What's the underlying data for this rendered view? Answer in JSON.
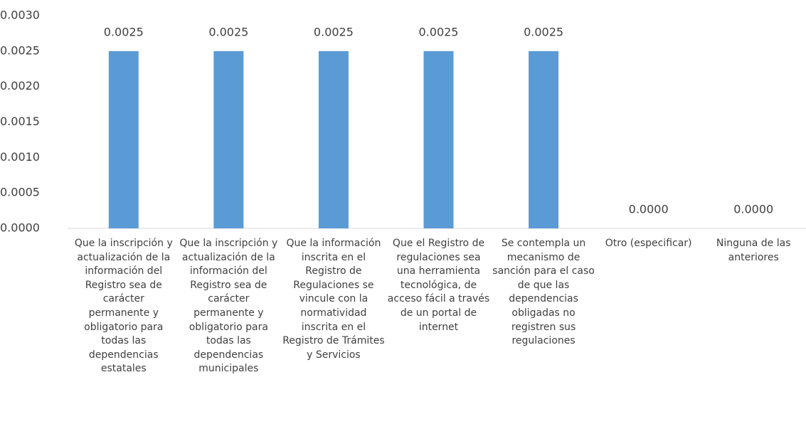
{
  "chart_data": {
    "type": "bar",
    "categories": [
      "Que la inscripción y actualización de la información del Registro sea de carácter permanente y obligatorio para todas las dependencias estatales",
      "Que la inscripción y actualización de la información del Registro sea de carácter permanente y obligatorio para todas las dependencias municipales",
      "Que la información inscrita en el Registro de Regulaciones se vincule con la normatividad inscrita en el Registro de Trámites y Servicios",
      "Que el Registro de regulaciones sea una herramienta tecnológica, de acceso fácil a través de un portal de internet",
      "Se contempla un mecanismo de sanción para el caso de que las dependencias obligadas no registren sus regulaciones",
      "Otro (especificar)",
      "Ninguna de las anteriores"
    ],
    "values": [
      0.0025,
      0.0025,
      0.0025,
      0.0025,
      0.0025,
      0,
      0
    ],
    "value_labels": [
      "0.0025",
      "0.0025",
      "0.0025",
      "0.0025",
      "0.0025",
      "0.0000",
      "0.0000"
    ],
    "color": "#5b9bd5",
    "ylim": [
      0,
      0.003
    ],
    "yticks": [
      {
        "value": 0,
        "label": "0.0000"
      },
      {
        "value": 0.0005,
        "label": "0.0005"
      },
      {
        "value": 0.001,
        "label": "0.0010"
      },
      {
        "value": 0.0015,
        "label": "0.0015"
      },
      {
        "value": 0.002,
        "label": "0.0020"
      },
      {
        "value": 0.0025,
        "label": "0.0025"
      },
      {
        "value": 0.003,
        "label": "0.0030"
      }
    ],
    "grid": false
  }
}
